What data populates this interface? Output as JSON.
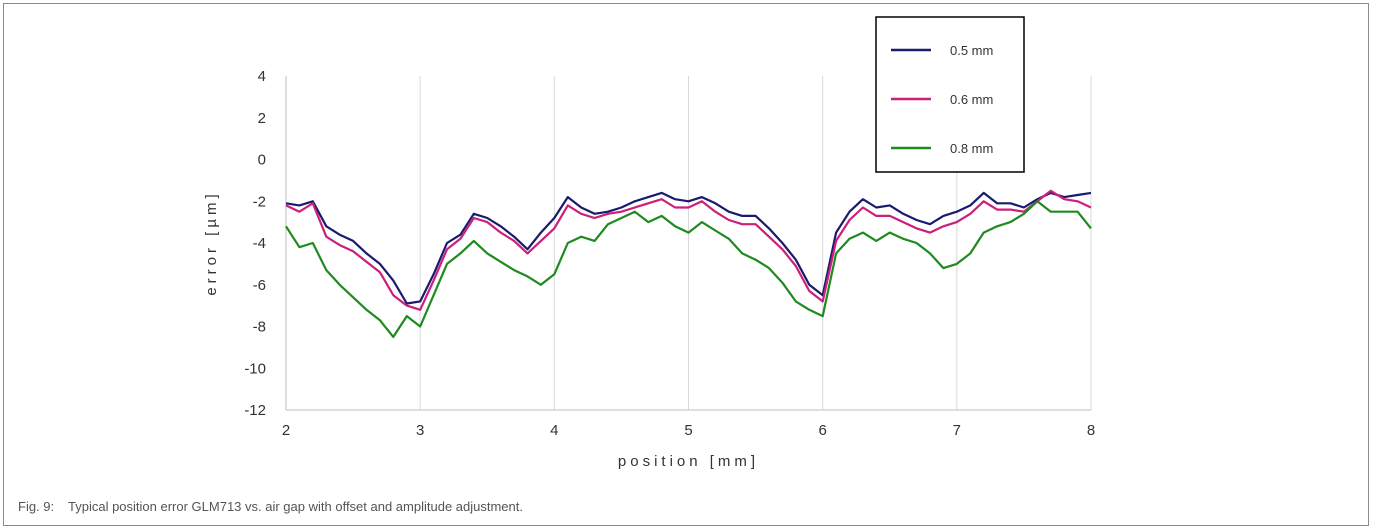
{
  "caption": {
    "fig_label": "Fig. 9:",
    "text": "Typical position error GLM713 vs. air gap with offset and amplitude adjustment."
  },
  "chart_data": {
    "type": "line",
    "xlabel": "position [mm]",
    "ylabel": "error [µm]",
    "xlim": [
      2,
      8
    ],
    "ylim": [
      -12,
      4
    ],
    "xticks": [
      2,
      3,
      4,
      5,
      6,
      7,
      8
    ],
    "yticks": [
      4,
      2,
      0,
      -2,
      -4,
      -6,
      -8,
      -10,
      -12
    ],
    "grid": "vertical",
    "legend_position": "top-right",
    "series": [
      {
        "name": "0.5 mm",
        "color": "#1a1a6e",
        "x": [
          2.0,
          2.1,
          2.2,
          2.3,
          2.4,
          2.5,
          2.6,
          2.7,
          2.8,
          2.9,
          3.0,
          3.1,
          3.2,
          3.3,
          3.4,
          3.5,
          3.6,
          3.7,
          3.8,
          3.9,
          4.0,
          4.1,
          4.2,
          4.3,
          4.4,
          4.5,
          4.6,
          4.7,
          4.8,
          4.9,
          5.0,
          5.1,
          5.2,
          5.3,
          5.4,
          5.5,
          5.6,
          5.7,
          5.8,
          5.9,
          6.0,
          6.1,
          6.2,
          6.3,
          6.4,
          6.5,
          6.6,
          6.7,
          6.8,
          6.9,
          7.0,
          7.1,
          7.2,
          7.3,
          7.4,
          7.5,
          7.6,
          7.7,
          7.8,
          7.9,
          8.0
        ],
        "y": [
          -2.1,
          -2.2,
          -2.0,
          -3.2,
          -3.6,
          -3.9,
          -4.5,
          -5.0,
          -5.8,
          -6.9,
          -6.8,
          -5.5,
          -4.0,
          -3.6,
          -2.6,
          -2.8,
          -3.2,
          -3.7,
          -4.3,
          -3.5,
          -2.8,
          -1.8,
          -2.3,
          -2.6,
          -2.5,
          -2.3,
          -2.0,
          -1.8,
          -1.6,
          -1.9,
          -2.0,
          -1.8,
          -2.1,
          -2.5,
          -2.7,
          -2.7,
          -3.3,
          -4.0,
          -4.8,
          -6.0,
          -6.5,
          -3.5,
          -2.5,
          -1.9,
          -2.3,
          -2.2,
          -2.6,
          -2.9,
          -3.1,
          -2.7,
          -2.5,
          -2.2,
          -1.6,
          -2.1,
          -2.1,
          -2.3,
          -1.9,
          -1.6,
          -1.8,
          -1.7,
          -1.6
        ]
      },
      {
        "name": "0.6 mm",
        "color": "#cc1f7a",
        "x": [
          2.0,
          2.1,
          2.2,
          2.3,
          2.4,
          2.5,
          2.6,
          2.7,
          2.8,
          2.9,
          3.0,
          3.1,
          3.2,
          3.3,
          3.4,
          3.5,
          3.6,
          3.7,
          3.8,
          3.9,
          4.0,
          4.1,
          4.2,
          4.3,
          4.4,
          4.5,
          4.6,
          4.7,
          4.8,
          4.9,
          5.0,
          5.1,
          5.2,
          5.3,
          5.4,
          5.5,
          5.6,
          5.7,
          5.8,
          5.9,
          6.0,
          6.1,
          6.2,
          6.3,
          6.4,
          6.5,
          6.6,
          6.7,
          6.8,
          6.9,
          7.0,
          7.1,
          7.2,
          7.3,
          7.4,
          7.5,
          7.6,
          7.7,
          7.8,
          7.9,
          8.0
        ],
        "y": [
          -2.2,
          -2.5,
          -2.1,
          -3.7,
          -4.1,
          -4.4,
          -4.9,
          -5.4,
          -6.5,
          -7.0,
          -7.2,
          -5.8,
          -4.3,
          -3.8,
          -2.8,
          -3.0,
          -3.5,
          -3.9,
          -4.5,
          -3.9,
          -3.3,
          -2.2,
          -2.6,
          -2.8,
          -2.6,
          -2.5,
          -2.3,
          -2.1,
          -1.9,
          -2.3,
          -2.3,
          -2.0,
          -2.5,
          -2.9,
          -3.1,
          -3.1,
          -3.7,
          -4.3,
          -5.1,
          -6.3,
          -6.8,
          -3.9,
          -2.9,
          -2.3,
          -2.7,
          -2.7,
          -3.0,
          -3.3,
          -3.5,
          -3.2,
          -3.0,
          -2.6,
          -2.0,
          -2.4,
          -2.4,
          -2.5,
          -2.0,
          -1.5,
          -1.9,
          -2.0,
          -2.3
        ]
      },
      {
        "name": "0.8 mm",
        "color": "#1f8a1f",
        "x": [
          2.0,
          2.1,
          2.2,
          2.3,
          2.4,
          2.5,
          2.6,
          2.7,
          2.8,
          2.9,
          3.0,
          3.1,
          3.2,
          3.3,
          3.4,
          3.5,
          3.6,
          3.7,
          3.8,
          3.9,
          4.0,
          4.1,
          4.2,
          4.3,
          4.4,
          4.5,
          4.6,
          4.7,
          4.8,
          4.9,
          5.0,
          5.1,
          5.2,
          5.3,
          5.4,
          5.5,
          5.6,
          5.7,
          5.8,
          5.9,
          6.0,
          6.1,
          6.2,
          6.3,
          6.4,
          6.5,
          6.6,
          6.7,
          6.8,
          6.9,
          7.0,
          7.1,
          7.2,
          7.3,
          7.4,
          7.5,
          7.6,
          7.7,
          7.8,
          7.9,
          8.0
        ],
        "y": [
          -3.2,
          -4.2,
          -4.0,
          -5.3,
          -6.0,
          -6.6,
          -7.2,
          -7.7,
          -8.5,
          -7.5,
          -8.0,
          -6.5,
          -5.0,
          -4.5,
          -3.9,
          -4.5,
          -4.9,
          -5.3,
          -5.6,
          -6.0,
          -5.5,
          -4.0,
          -3.7,
          -3.9,
          -3.1,
          -2.8,
          -2.5,
          -3.0,
          -2.7,
          -3.2,
          -3.5,
          -3.0,
          -3.4,
          -3.8,
          -4.5,
          -4.8,
          -5.2,
          -5.9,
          -6.8,
          -7.2,
          -7.5,
          -4.5,
          -3.8,
          -3.5,
          -3.9,
          -3.5,
          -3.8,
          -4.0,
          -4.5,
          -5.2,
          -5.0,
          -4.5,
          -3.5,
          -3.2,
          -3.0,
          -2.6,
          -2.0,
          -2.5,
          -2.5,
          -2.5,
          -3.3
        ]
      }
    ]
  }
}
